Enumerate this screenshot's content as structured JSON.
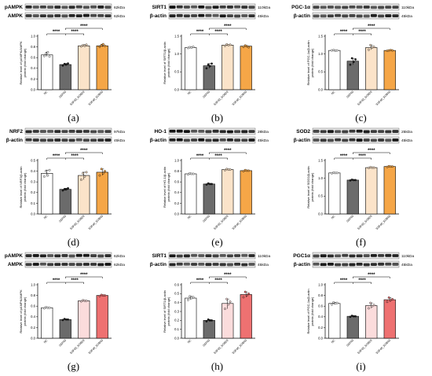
{
  "colors": {
    "nc": "#ffffff",
    "model": "#6b6b6b",
    "mid": "#fbe3c9",
    "high": "#f5a647",
    "mid_pink": "#fbdcdc",
    "high_pink": "#ee7171",
    "axis": "#000000"
  },
  "chart_data": [
    {
      "id": "a",
      "type": "bar",
      "panel_label": "(a)",
      "blots": [
        {
          "label": "pAMPK",
          "kda": "62kDa"
        },
        {
          "label": "AMPK",
          "kda": "62kDa"
        }
      ],
      "ylabel": "Relative level of pAMPK/AMPK protein (fold change)",
      "ylim": [
        0,
        1.0
      ],
      "yticks": [
        "0.0",
        "0.2",
        "0.4",
        "0.6",
        "0.8",
        "1.0"
      ],
      "ytick_values": [
        0,
        0.2,
        0.4,
        0.6,
        0.8,
        1.0
      ],
      "categories": [
        "NC",
        "SSF40",
        "SSF40_SOB20",
        "SSF40_SOB40"
      ],
      "values": [
        0.65,
        0.47,
        0.82,
        0.82
      ],
      "points": [
        [
          0.63,
          0.67,
          0.7,
          0.62
        ],
        [
          0.45,
          0.48,
          0.47,
          0.49
        ],
        [
          0.81,
          0.83,
          0.82,
          0.84
        ],
        [
          0.8,
          0.83,
          0.85,
          0.82
        ]
      ],
      "palette": [
        "nc",
        "model",
        "mid",
        "high"
      ],
      "significance": [
        {
          "from": 0,
          "to": 1,
          "level": 0,
          "label": "****"
        },
        {
          "from": 1,
          "to": 2,
          "level": 0,
          "label": "****"
        },
        {
          "from": 1,
          "to": 3,
          "level": 1,
          "label": "****"
        }
      ]
    },
    {
      "id": "b",
      "type": "bar",
      "panel_label": "(b)",
      "blots": [
        {
          "label": "SIRT1",
          "kda": "110kDa"
        },
        {
          "label": "β-actin",
          "kda": "45kDa"
        }
      ],
      "ylabel": "Relative level of SIRT1/β-actin protein (fold change)",
      "ylim": [
        0,
        1.5
      ],
      "yticks": [
        "0.0",
        "0.5",
        "1.0",
        "1.5"
      ],
      "ytick_values": [
        0,
        0.5,
        1.0,
        1.5
      ],
      "categories": [
        "NC",
        "SSF40",
        "SSF40_SOB20",
        "SSF40_SOB40"
      ],
      "values": [
        1.18,
        0.67,
        1.25,
        1.22
      ],
      "points": [
        [
          1.17,
          1.19,
          1.18,
          1.2
        ],
        [
          0.6,
          0.7,
          0.66,
          0.73
        ],
        [
          1.23,
          1.27,
          1.25,
          1.26
        ],
        [
          1.2,
          1.24,
          1.22,
          1.19
        ]
      ],
      "palette": [
        "nc",
        "model",
        "mid",
        "high"
      ],
      "significance": [
        {
          "from": 0,
          "to": 1,
          "level": 0,
          "label": "****"
        },
        {
          "from": 1,
          "to": 2,
          "level": 0,
          "label": "****"
        },
        {
          "from": 1,
          "to": 3,
          "level": 1,
          "label": "****"
        }
      ]
    },
    {
      "id": "c",
      "type": "bar",
      "panel_label": "(c)",
      "blots": [
        {
          "label": "PGC-1α",
          "kda": "110kDa"
        },
        {
          "label": "β-actin",
          "kda": "45kDa"
        }
      ],
      "ylabel": "Relative level of PGC-1α/β-actin protein (fold change)",
      "ylim": [
        0,
        1.5
      ],
      "yticks": [
        "0.0",
        "0.5",
        "1.0",
        "1.5"
      ],
      "ytick_values": [
        0,
        0.5,
        1.0,
        1.5
      ],
      "categories": [
        "NC",
        "SSF40",
        "SSF40_SOB20",
        "SSF40_SOB40"
      ],
      "values": [
        1.1,
        0.8,
        1.18,
        1.1
      ],
      "points": [
        [
          1.1,
          1.11,
          1.09,
          1.1
        ],
        [
          0.7,
          0.88,
          0.78,
          0.85
        ],
        [
          1.12,
          1.25,
          1.18,
          1.2
        ],
        [
          1.09,
          1.1,
          1.11,
          1.1
        ]
      ],
      "palette": [
        "nc",
        "model",
        "mid",
        "high"
      ],
      "significance": [
        {
          "from": 0,
          "to": 1,
          "level": 0,
          "label": "****"
        },
        {
          "from": 1,
          "to": 2,
          "level": 0,
          "label": "****"
        },
        {
          "from": 1,
          "to": 3,
          "level": 1,
          "label": "****"
        }
      ]
    },
    {
      "id": "d",
      "type": "bar",
      "panel_label": "(d)",
      "blots": [
        {
          "label": "NRF2",
          "kda": "97kDa"
        },
        {
          "label": "β-actin",
          "kda": "45kDa"
        }
      ],
      "ylabel": "Relative level of NRF2/β-actin protein (fold change)",
      "ylim": [
        0,
        0.5
      ],
      "yticks": [
        "0.0",
        "0.1",
        "0.2",
        "0.3",
        "0.4",
        "0.5"
      ],
      "ytick_values": [
        0,
        0.1,
        0.2,
        0.3,
        0.4,
        0.5
      ],
      "categories": [
        "NC",
        "SSF40",
        "SSF40_SOB20",
        "SSF40_SOB40"
      ],
      "values": [
        0.38,
        0.23,
        0.36,
        0.39
      ],
      "points": [
        [
          0.35,
          0.4,
          0.36,
          0.41
        ],
        [
          0.22,
          0.23,
          0.23,
          0.24
        ],
        [
          0.32,
          0.38,
          0.35,
          0.39
        ],
        [
          0.36,
          0.42,
          0.38,
          0.4
        ]
      ],
      "palette": [
        "nc",
        "model",
        "mid",
        "high"
      ],
      "significance": [
        {
          "from": 0,
          "to": 1,
          "level": 0,
          "label": "****"
        },
        {
          "from": 1,
          "to": 2,
          "level": 0,
          "label": "****"
        },
        {
          "from": 1,
          "to": 3,
          "level": 1,
          "label": "****"
        }
      ]
    },
    {
      "id": "e",
      "type": "bar",
      "panel_label": "(e)",
      "blots": [
        {
          "label": "HO-1",
          "kda": "28kDa"
        },
        {
          "label": "β-actin",
          "kda": "45kDa"
        }
      ],
      "ylabel": "Relative level of HO-1/β-actin protein (fold change)",
      "ylim": [
        0,
        1.0
      ],
      "yticks": [
        "0.0",
        "0.2",
        "0.4",
        "0.6",
        "0.8",
        "1.0"
      ],
      "ytick_values": [
        0,
        0.2,
        0.4,
        0.6,
        0.8,
        1.0
      ],
      "categories": [
        "NC",
        "SSF40",
        "SSF40_SOB20",
        "SSF40_SOB40"
      ],
      "values": [
        0.75,
        0.56,
        0.83,
        0.81
      ],
      "points": [
        [
          0.74,
          0.76,
          0.75,
          0.75
        ],
        [
          0.55,
          0.57,
          0.56,
          0.56
        ],
        [
          0.82,
          0.84,
          0.83,
          0.83
        ],
        [
          0.8,
          0.82,
          0.81,
          0.81
        ]
      ],
      "palette": [
        "nc",
        "model",
        "mid",
        "high"
      ],
      "significance": [
        {
          "from": 0,
          "to": 1,
          "level": 0,
          "label": "****"
        },
        {
          "from": 1,
          "to": 2,
          "level": 0,
          "label": "****"
        },
        {
          "from": 1,
          "to": 3,
          "level": 1,
          "label": "****"
        }
      ]
    },
    {
      "id": "f",
      "type": "bar",
      "panel_label": "(f)",
      "blots": [
        {
          "label": "SOD2",
          "kda": "25kDa"
        },
        {
          "label": "β-actin",
          "kda": "45kDa"
        }
      ],
      "ylabel": "Relative level of SOD2/β-actin protein (fold change)",
      "ylim": [
        0,
        1.5
      ],
      "yticks": [
        "0.0",
        "0.5",
        "1.0",
        "1.5"
      ],
      "ytick_values": [
        0,
        0.5,
        1.0,
        1.5
      ],
      "categories": [
        "NC",
        "SSF40",
        "SSF40_SOB20",
        "SSF40_SOB40"
      ],
      "values": [
        1.15,
        0.95,
        1.3,
        1.33
      ],
      "points": [
        [
          1.14,
          1.16,
          1.15,
          1.15
        ],
        [
          0.94,
          0.96,
          0.95,
          0.95
        ],
        [
          1.29,
          1.31,
          1.3,
          1.3
        ],
        [
          1.32,
          1.34,
          1.33,
          1.33
        ]
      ],
      "palette": [
        "nc",
        "model",
        "mid",
        "high"
      ],
      "significance": [
        {
          "from": 0,
          "to": 1,
          "level": 0,
          "label": "****"
        },
        {
          "from": 1,
          "to": 2,
          "level": 0,
          "label": "****"
        },
        {
          "from": 1,
          "to": 3,
          "level": 1,
          "label": "****"
        }
      ]
    },
    {
      "id": "g",
      "type": "bar",
      "panel_label": "(g)",
      "blots": [
        {
          "label": "pAMPK",
          "kda": "62kDa"
        },
        {
          "label": "AMPK",
          "kda": "62kDa"
        }
      ],
      "ylabel": "Relative level of pAMPK/AMPK protein (fold change)",
      "ylim": [
        0,
        1.0
      ],
      "yticks": [
        "0.0",
        "0.2",
        "0.4",
        "0.6",
        "0.8",
        "1.0"
      ],
      "ytick_values": [
        0,
        0.2,
        0.4,
        0.6,
        0.8,
        1.0
      ],
      "categories": [
        "NC",
        "SSF40",
        "SSF40_SOB20",
        "SSF40_SOB40"
      ],
      "values": [
        0.57,
        0.35,
        0.7,
        0.8
      ],
      "points": [
        [
          0.56,
          0.58,
          0.57,
          0.57
        ],
        [
          0.34,
          0.36,
          0.35,
          0.35
        ],
        [
          0.69,
          0.71,
          0.7,
          0.7
        ],
        [
          0.79,
          0.81,
          0.8,
          0.8
        ]
      ],
      "palette": [
        "nc",
        "model",
        "mid_pink",
        "high_pink"
      ],
      "significance": [
        {
          "from": 0,
          "to": 1,
          "level": 0,
          "label": "****"
        },
        {
          "from": 1,
          "to": 2,
          "level": 0,
          "label": "****"
        },
        {
          "from": 1,
          "to": 3,
          "level": 1,
          "label": "****"
        }
      ]
    },
    {
      "id": "h",
      "type": "bar",
      "panel_label": "(h)",
      "blots": [
        {
          "label": "SIRT1",
          "kda": "110kDa"
        },
        {
          "label": "β-actin",
          "kda": "45kDa"
        }
      ],
      "ylabel": "Relative level of SIRT1/β-actin protein (fold change)",
      "ylim": [
        0,
        0.6
      ],
      "yticks": [
        "0.0",
        "0.1",
        "0.2",
        "0.3",
        "0.4",
        "0.5",
        "0.6"
      ],
      "ytick_values": [
        0,
        0.1,
        0.2,
        0.3,
        0.4,
        0.5,
        0.6
      ],
      "categories": [
        "NC",
        "SSF40",
        "SSF40_SOB20",
        "SSF40_SOB40"
      ],
      "values": [
        0.45,
        0.2,
        0.39,
        0.49
      ],
      "points": [
        [
          0.43,
          0.47,
          0.45,
          0.46
        ],
        [
          0.19,
          0.21,
          0.2,
          0.2
        ],
        [
          0.33,
          0.44,
          0.38,
          0.41
        ],
        [
          0.46,
          0.52,
          0.48,
          0.5
        ]
      ],
      "palette": [
        "nc",
        "model",
        "mid_pink",
        "high_pink"
      ],
      "significance": [
        {
          "from": 0,
          "to": 1,
          "level": 0,
          "label": "****"
        },
        {
          "from": 1,
          "to": 2,
          "level": 0,
          "label": "****"
        },
        {
          "from": 1,
          "to": 3,
          "level": 1,
          "label": "****"
        }
      ]
    },
    {
      "id": "i",
      "type": "bar",
      "panel_label": "(i)",
      "blots": [
        {
          "label": "PGC1α",
          "kda": "110kDa"
        },
        {
          "label": "β-actin",
          "kda": "45kDa"
        }
      ],
      "ylabel": "Relative level of PGC-1α/β-actin protein (fold change)",
      "ylim": [
        0,
        1.0
      ],
      "yticks": [
        "0.0",
        "0.2",
        "0.4",
        "0.6",
        "0.8",
        "1.0"
      ],
      "ytick_values": [
        0,
        0.2,
        0.4,
        0.6,
        0.8,
        1.0
      ],
      "categories": [
        "NC",
        "SSF40",
        "SSF40_SOB20",
        "SSF40_SOB40"
      ],
      "values": [
        0.65,
        0.41,
        0.61,
        0.72
      ],
      "points": [
        [
          0.63,
          0.67,
          0.65,
          0.66
        ],
        [
          0.4,
          0.42,
          0.41,
          0.41
        ],
        [
          0.56,
          0.66,
          0.6,
          0.62
        ],
        [
          0.68,
          0.76,
          0.71,
          0.73
        ]
      ],
      "palette": [
        "nc",
        "model",
        "mid_pink",
        "high_pink"
      ],
      "significance": [
        {
          "from": 0,
          "to": 1,
          "level": 0,
          "label": "****"
        },
        {
          "from": 1,
          "to": 2,
          "level": 0,
          "label": "****"
        },
        {
          "from": 1,
          "to": 3,
          "level": 1,
          "label": "****"
        }
      ]
    }
  ]
}
